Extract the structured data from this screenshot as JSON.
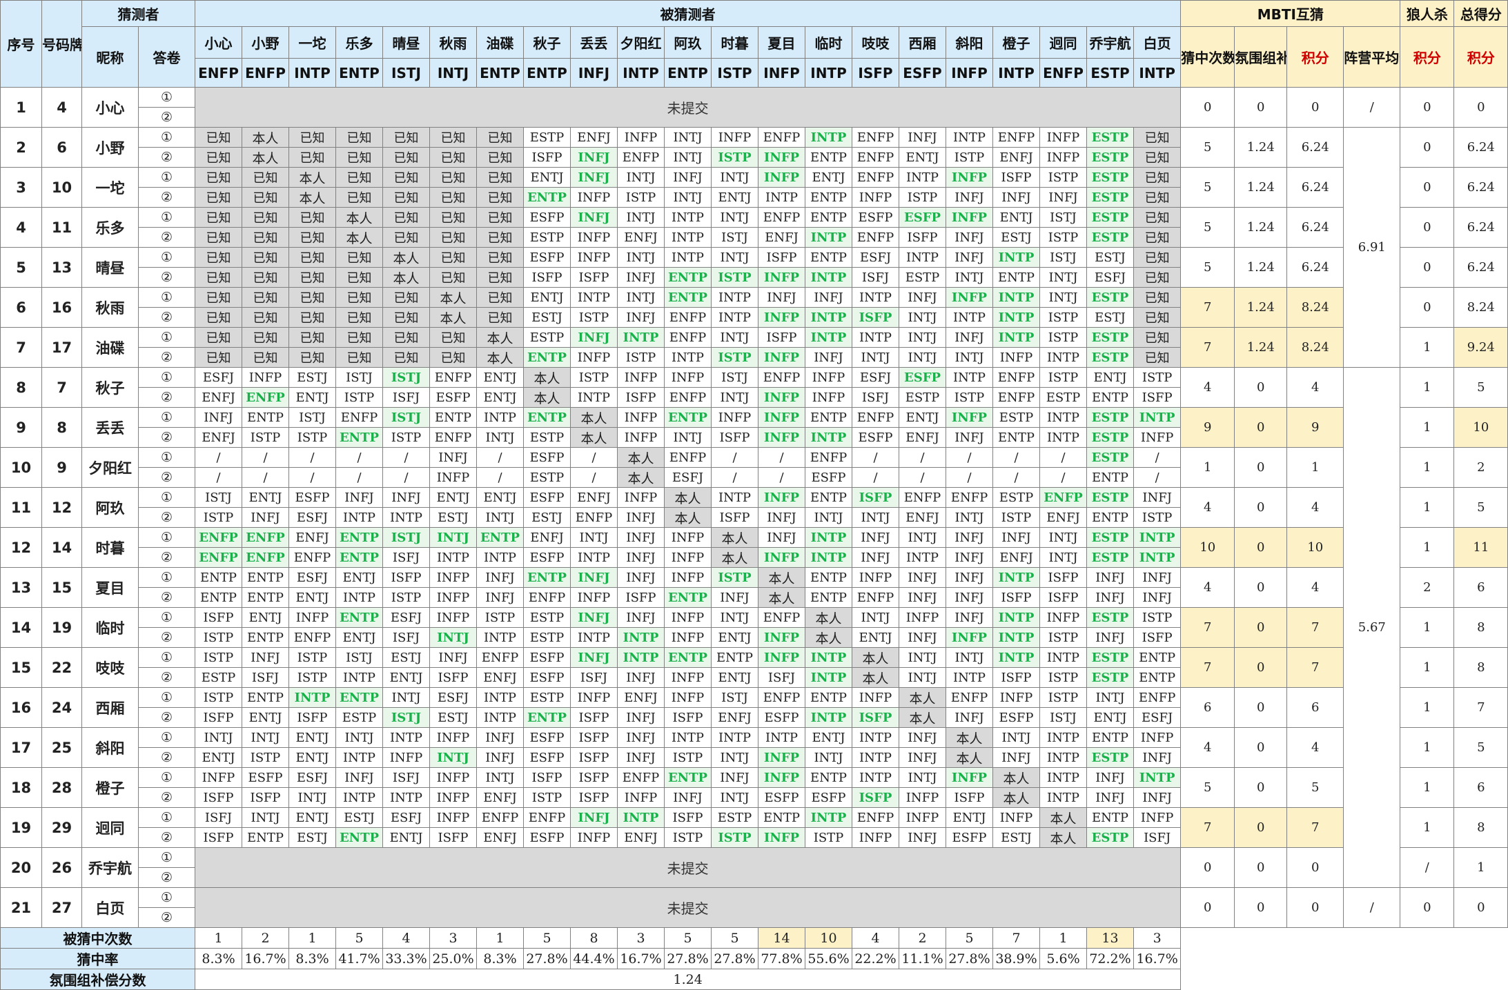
{
  "headers": {
    "seq": "序号",
    "card": "号码牌",
    "guesser": "猜测者",
    "nick": "昵称",
    "sheet": "答卷",
    "guessed_group": "被猜测者",
    "mbti_group": "MBTI互猜",
    "hits": "猜中次数",
    "comp": "氛围组补偿分",
    "points": "积分",
    "camp_avg": "阵营平均分",
    "wolf_group": "狼人杀",
    "wolf_points": "积分",
    "total_group": "总得分",
    "total_points": "积分"
  },
  "targets": [
    {
      "name": "小心",
      "mbti": "ENFP"
    },
    {
      "name": "小野",
      "mbti": "ENFP"
    },
    {
      "name": "一坨",
      "mbti": "INTP"
    },
    {
      "name": "乐多",
      "mbti": "ENTP"
    },
    {
      "name": "晴昼",
      "mbti": "ISTJ"
    },
    {
      "name": "秋雨",
      "mbti": "INTJ"
    },
    {
      "name": "油碟",
      "mbti": "ENTP"
    },
    {
      "name": "秋子",
      "mbti": "ENTP"
    },
    {
      "name": "丢丢",
      "mbti": "INFJ"
    },
    {
      "name": "夕阳红",
      "mbti": "INTP"
    },
    {
      "name": "阿玖",
      "mbti": "ENTP"
    },
    {
      "name": "时暮",
      "mbti": "ISTP"
    },
    {
      "name": "夏目",
      "mbti": "INFP"
    },
    {
      "name": "临时",
      "mbti": "INTP"
    },
    {
      "name": "吱吱",
      "mbti": "ISFP"
    },
    {
      "name": "西厢",
      "mbti": "ESFP"
    },
    {
      "name": "斜阳",
      "mbti": "INFP"
    },
    {
      "name": "橙子",
      "mbti": "INTP"
    },
    {
      "name": "迥同",
      "mbti": "ENFP"
    },
    {
      "name": "乔宇航",
      "mbti": "ESTP"
    },
    {
      "name": "白页",
      "mbti": "INTP"
    }
  ],
  "markers": [
    "①",
    "②"
  ],
  "not_submitted": "未提交",
  "rows": [
    {
      "seq": "1",
      "card": "4",
      "nick": "小心",
      "ns": true,
      "hits": "0",
      "comp": "0",
      "pts": "0",
      "wolf": "0",
      "total": "0",
      "avg": "/"
    },
    {
      "seq": "2",
      "card": "6",
      "nick": "小野",
      "hits": "5",
      "comp": "1.24",
      "pts": "6.24",
      "wolf": "0",
      "total": "6.24",
      "a1": [
        "已知",
        "本人",
        "已知",
        "已知",
        "已知",
        "已知",
        "已知",
        "ESTP",
        "ENFJ",
        "INFP",
        "INTJ",
        "INFP",
        "ENFP",
        "INTP",
        "ENFP",
        "INFJ",
        "INTP",
        "ENFP",
        "INFP",
        "ESTP",
        "已知"
      ],
      "a2": [
        "已知",
        "本人",
        "已知",
        "已知",
        "已知",
        "已知",
        "已知",
        "ISFP",
        "INFJ",
        "ENFP",
        "INTJ",
        "ISTP",
        "INFP",
        "ENTP",
        "ENFP",
        "ENTJ",
        "ISTP",
        "ENFJ",
        "INFP",
        "ESTP",
        "已知"
      ]
    },
    {
      "seq": "3",
      "card": "10",
      "nick": "一坨",
      "hits": "5",
      "comp": "1.24",
      "pts": "6.24",
      "wolf": "0",
      "total": "6.24",
      "a1": [
        "已知",
        "已知",
        "本人",
        "已知",
        "已知",
        "已知",
        "已知",
        "ENTJ",
        "INFJ",
        "INTJ",
        "INFJ",
        "INTJ",
        "INFP",
        "ENTJ",
        "ENFP",
        "INTP",
        "INFP",
        "ISFP",
        "ISTP",
        "ESTP",
        "已知"
      ],
      "a2": [
        "已知",
        "已知",
        "本人",
        "已知",
        "已知",
        "已知",
        "已知",
        "ENTP",
        "INFP",
        "ISTP",
        "INTJ",
        "ENTJ",
        "INTP",
        "ENTP",
        "INFP",
        "ISTP",
        "INFJ",
        "INFJ",
        "INFJ",
        "ESTP",
        "已知"
      ]
    },
    {
      "seq": "4",
      "card": "11",
      "nick": "乐多",
      "hits": "5",
      "comp": "1.24",
      "pts": "6.24",
      "wolf": "0",
      "total": "6.24",
      "a1": [
        "已知",
        "已知",
        "已知",
        "本人",
        "已知",
        "已知",
        "已知",
        "ESFP",
        "INFJ",
        "INTJ",
        "INTP",
        "INTJ",
        "ENFP",
        "ENTP",
        "ESFP",
        "ESFP",
        "INFP",
        "ENTJ",
        "ISTJ",
        "ESTP",
        "已知"
      ],
      "a2": [
        "已知",
        "已知",
        "已知",
        "本人",
        "已知",
        "已知",
        "已知",
        "ESTP",
        "INFP",
        "ENFJ",
        "INTP",
        "ISTJ",
        "ENFJ",
        "INTP",
        "ENFP",
        "ISFP",
        "INFJ",
        "ESTJ",
        "ISTP",
        "ESTP",
        "已知"
      ]
    },
    {
      "seq": "5",
      "card": "13",
      "nick": "晴昼",
      "hits": "5",
      "comp": "1.24",
      "pts": "6.24",
      "wolf": "0",
      "total": "6.24",
      "a1": [
        "已知",
        "已知",
        "已知",
        "已知",
        "本人",
        "已知",
        "已知",
        "ESFP",
        "INFP",
        "INTJ",
        "INTP",
        "INTJ",
        "ISFP",
        "ENTP",
        "ESFJ",
        "INTP",
        "INFJ",
        "INTP",
        "ISTJ",
        "ESTJ",
        "已知"
      ],
      "a2": [
        "已知",
        "已知",
        "已知",
        "已知",
        "本人",
        "已知",
        "已知",
        "ISFP",
        "ISFP",
        "INFJ",
        "ENTP",
        "ISTP",
        "INFP",
        "INTP",
        "ISFJ",
        "ESTP",
        "INTJ",
        "ENTP",
        "INTJ",
        "ESFJ",
        "已知"
      ]
    },
    {
      "seq": "6",
      "card": "16",
      "nick": "秋雨",
      "hits": "7",
      "comp": "1.24",
      "pts": "8.24",
      "wolf": "0",
      "total": "8.24",
      "a1": [
        "已知",
        "已知",
        "已知",
        "已知",
        "已知",
        "本人",
        "已知",
        "ENTJ",
        "INTP",
        "INTJ",
        "ENTP",
        "INTP",
        "INFJ",
        "INFJ",
        "INTP",
        "INFJ",
        "INFP",
        "INTP",
        "INTJ",
        "ESTP",
        "已知"
      ],
      "a2": [
        "已知",
        "已知",
        "已知",
        "已知",
        "已知",
        "本人",
        "已知",
        "ESTJ",
        "ISTP",
        "INFJ",
        "ENFP",
        "INTP",
        "INFP",
        "INTP",
        "ISFP",
        "INTJ",
        "INTP",
        "INTP",
        "ISTP",
        "ESTJ",
        "已知"
      ]
    },
    {
      "seq": "7",
      "card": "17",
      "nick": "油碟",
      "hits": "7",
      "comp": "1.24",
      "pts": "8.24",
      "wolf": "1",
      "total": "9.24",
      "a1": [
        "已知",
        "已知",
        "已知",
        "已知",
        "已知",
        "已知",
        "本人",
        "ESTP",
        "INFJ",
        "INTP",
        "ENFP",
        "INTJ",
        "ISFP",
        "INTP",
        "INTP",
        "INTJ",
        "INFJ",
        "INTP",
        "ISTP",
        "ESTP",
        "已知"
      ],
      "a2": [
        "已知",
        "已知",
        "已知",
        "已知",
        "已知",
        "已知",
        "本人",
        "ENTP",
        "INFP",
        "ISTP",
        "INTP",
        "ISTP",
        "INFP",
        "INFJ",
        "INTJ",
        "INTJ",
        "INTJ",
        "INFP",
        "INTP",
        "ESTP",
        "已知"
      ]
    },
    {
      "seq": "8",
      "card": "7",
      "nick": "秋子",
      "hits": "4",
      "comp": "0",
      "pts": "4",
      "wolf": "1",
      "total": "5",
      "a1": [
        "ESFJ",
        "INFP",
        "ESTJ",
        "ISTJ",
        "ISTJ",
        "ENFP",
        "ENTJ",
        "本人",
        "ISTP",
        "INFP",
        "INFP",
        "ISTJ",
        "ENFP",
        "INFP",
        "ESFJ",
        "ESFP",
        "INTP",
        "ENFP",
        "ISTP",
        "ENTJ",
        "ISTP"
      ],
      "a2": [
        "ENFJ",
        "ENFP",
        "ENTJ",
        "ISTP",
        "ISFJ",
        "ESFP",
        "ENTJ",
        "本人",
        "INTP",
        "ISFP",
        "ENFP",
        "INTJ",
        "INFP",
        "INFP",
        "ISFJ",
        "ESTP",
        "ISTP",
        "ENFP",
        "ESTP",
        "ENTP",
        "ISFP"
      ]
    },
    {
      "seq": "9",
      "card": "8",
      "nick": "丢丢",
      "hits": "9",
      "comp": "0",
      "pts": "9",
      "wolf": "1",
      "total": "10",
      "a1": [
        "INFJ",
        "ENTP",
        "ISTJ",
        "ENFP",
        "ISTJ",
        "ENTP",
        "INTP",
        "ENTP",
        "本人",
        "INFP",
        "ENTP",
        "INFP",
        "INFP",
        "ENTP",
        "ENFP",
        "ENTJ",
        "INFP",
        "ESTP",
        "INTP",
        "ESTP",
        "INTP"
      ],
      "a2": [
        "ENFJ",
        "ISTP",
        "ISTP",
        "ENTP",
        "ISTP",
        "ENFP",
        "INTJ",
        "ESTP",
        "本人",
        "INFP",
        "INTJ",
        "ISFP",
        "INFP",
        "INTP",
        "ESFP",
        "ENFJ",
        "INFJ",
        "ENTP",
        "INTP",
        "ESTP",
        "INFP"
      ]
    },
    {
      "seq": "10",
      "card": "9",
      "nick": "夕阳红",
      "hits": "1",
      "comp": "0",
      "pts": "1",
      "wolf": "1",
      "total": "2",
      "a1": [
        "/",
        "/",
        "/",
        "/",
        "/",
        "INFJ",
        "/",
        "ESFP",
        "/",
        "本人",
        "ENFP",
        "/",
        "/",
        "ENFP",
        "/",
        "/",
        "/",
        "/",
        "/",
        "ESTP",
        "/"
      ],
      "a2": [
        "/",
        "/",
        "/",
        "/",
        "/",
        "INFP",
        "/",
        "ESTP",
        "/",
        "本人",
        "ESFJ",
        "/",
        "/",
        "ESFP",
        "/",
        "/",
        "/",
        "/",
        "/",
        "ENTP",
        "/"
      ]
    },
    {
      "seq": "11",
      "card": "12",
      "nick": "阿玖",
      "hits": "4",
      "comp": "0",
      "pts": "4",
      "wolf": "1",
      "total": "5",
      "a1": [
        "ISTJ",
        "ENTJ",
        "ESFP",
        "INFJ",
        "INFJ",
        "ENTJ",
        "ENTJ",
        "ESFP",
        "ENFJ",
        "INFP",
        "本人",
        "INTP",
        "INFP",
        "ENTP",
        "ISFP",
        "ENFP",
        "ENFP",
        "ESTP",
        "ENFP",
        "ESTP",
        "INFJ"
      ],
      "a2": [
        "ISTP",
        "INFJ",
        "ESFJ",
        "INTP",
        "INTP",
        "ESTJ",
        "INTJ",
        "ESTJ",
        "ENFP",
        "INFJ",
        "本人",
        "ISFP",
        "INFJ",
        "INTJ",
        "INTJ",
        "ENFJ",
        "INTJ",
        "ISTP",
        "ENFJ",
        "ENTP",
        "ISTP"
      ]
    },
    {
      "seq": "12",
      "card": "14",
      "nick": "时暮",
      "hits": "10",
      "comp": "0",
      "pts": "10",
      "wolf": "1",
      "total": "11",
      "a1": [
        "ENFP",
        "ENFP",
        "ENFJ",
        "ENTP",
        "ISTJ",
        "INTJ",
        "ENTP",
        "ENFJ",
        "INTJ",
        "INFJ",
        "INFP",
        "本人",
        "INFJ",
        "INTP",
        "INFJ",
        "INTJ",
        "INFJ",
        "INFJ",
        "INTJ",
        "ESTP",
        "INTP"
      ],
      "a2": [
        "ENFP",
        "ENFP",
        "ENFP",
        "ENTP",
        "ISFJ",
        "INTP",
        "INTP",
        "ESFP",
        "INTP",
        "INFJ",
        "INFP",
        "本人",
        "INFP",
        "INTP",
        "INFJ",
        "INTP",
        "INFJ",
        "ENFJ",
        "INTJ",
        "ESTP",
        "INTP"
      ]
    },
    {
      "seq": "13",
      "card": "15",
      "nick": "夏目",
      "hits": "4",
      "comp": "0",
      "pts": "4",
      "wolf": "2",
      "total": "6",
      "a1": [
        "ENTP",
        "ENTP",
        "ESFJ",
        "ENTJ",
        "ISFP",
        "INFP",
        "INFJ",
        "ENTP",
        "INFJ",
        "INFJ",
        "INFP",
        "ISTP",
        "本人",
        "ENTP",
        "INFP",
        "INFJ",
        "INFJ",
        "INTP",
        "ISFP",
        "INFJ",
        "INFJ"
      ],
      "a2": [
        "ENTP",
        "ENTP",
        "ENTJ",
        "INTP",
        "ISTP",
        "INFP",
        "INFJ",
        "ENFP",
        "INFP",
        "ISFP",
        "ENTP",
        "INFJ",
        "本人",
        "ENTP",
        "ENFP",
        "INFJ",
        "INFJ",
        "ISFP",
        "ISFP",
        "INFJ",
        "INFJ"
      ]
    },
    {
      "seq": "14",
      "card": "19",
      "nick": "临时",
      "hits": "7",
      "comp": "0",
      "pts": "7",
      "wolf": "1",
      "total": "8",
      "a1": [
        "ISFP",
        "ENTJ",
        "INFP",
        "ENTP",
        "ESFJ",
        "INFP",
        "ISTP",
        "ESTP",
        "INFJ",
        "INFJ",
        "INFP",
        "INTJ",
        "ENFP",
        "本人",
        "INTJ",
        "INFP",
        "INFJ",
        "INTP",
        "INFP",
        "ESTP",
        "ISTP"
      ],
      "a2": [
        "ISTP",
        "ENTP",
        "ENFP",
        "ENTJ",
        "ISFJ",
        "INTJ",
        "INTP",
        "ESTP",
        "INTP",
        "INTP",
        "INFP",
        "ENTJ",
        "INFP",
        "本人",
        "ENTJ",
        "INFJ",
        "INFP",
        "INTP",
        "ISTP",
        "INFJ",
        "ISFP"
      ]
    },
    {
      "seq": "15",
      "card": "22",
      "nick": "吱吱",
      "hits": "7",
      "comp": "0",
      "pts": "7",
      "wolf": "1",
      "total": "8",
      "a1": [
        "ISTP",
        "INFJ",
        "ISTP",
        "ISTJ",
        "ESTJ",
        "INFJ",
        "ENFP",
        "ESFP",
        "INFJ",
        "INTP",
        "ENTP",
        "ENTP",
        "INFP",
        "INTP",
        "本人",
        "INTJ",
        "INTJ",
        "INTP",
        "INTP",
        "ESTP",
        "ENTP"
      ],
      "a2": [
        "ESTP",
        "ISFJ",
        "ISTP",
        "INTP",
        "ENTJ",
        "ISFP",
        "ENFJ",
        "ESFP",
        "ISFJ",
        "INFJ",
        "INFP",
        "ENTJ",
        "ISFJ",
        "INTP",
        "本人",
        "INTJ",
        "INTP",
        "ISFP",
        "ISTP",
        "ESTP",
        "ENTP"
      ]
    },
    {
      "seq": "16",
      "card": "24",
      "nick": "西厢",
      "hits": "6",
      "comp": "0",
      "pts": "6",
      "wolf": "1",
      "total": "7",
      "a1": [
        "ISTP",
        "ENTP",
        "INTP",
        "ENTP",
        "INTJ",
        "ESFJ",
        "INTP",
        "ESTP",
        "INFP",
        "ENFJ",
        "INFP",
        "ISTJ",
        "ENFP",
        "ENTP",
        "INFP",
        "本人",
        "ENFP",
        "INFP",
        "ISTP",
        "INTJ",
        "ENFP"
      ],
      "a2": [
        "ISFP",
        "ENTJ",
        "ISFP",
        "ESTP",
        "ISTJ",
        "ESTJ",
        "INTP",
        "ENTP",
        "ISFP",
        "INFJ",
        "ISFP",
        "ENFJ",
        "ESFP",
        "INTP",
        "ISFP",
        "本人",
        "INFJ",
        "ESFP",
        "ISTJ",
        "ENTJ",
        "ESFJ"
      ]
    },
    {
      "seq": "17",
      "card": "25",
      "nick": "斜阳",
      "hits": "4",
      "comp": "0",
      "pts": "4",
      "wolf": "1",
      "total": "5",
      "a1": [
        "INTJ",
        "INTJ",
        "ENTJ",
        "INTJ",
        "INTP",
        "INFP",
        "INFJ",
        "ESFP",
        "ISFP",
        "INFJ",
        "INTP",
        "INTP",
        "INTP",
        "ENTJ",
        "INTP",
        "INFJ",
        "本人",
        "INTJ",
        "INTP",
        "ENTP",
        "INFP"
      ],
      "a2": [
        "ENTJ",
        "ISTP",
        "ENTJ",
        "INTP",
        "INFP",
        "INTJ",
        "INFJ",
        "ESFP",
        "ISFP",
        "INFJ",
        "ISTP",
        "INTJ",
        "INFP",
        "INTJ",
        "INTP",
        "INFJ",
        "本人",
        "INFJ",
        "INTP",
        "ESTP",
        "INFJ"
      ]
    },
    {
      "seq": "18",
      "card": "28",
      "nick": "橙子",
      "hits": "5",
      "comp": "0",
      "pts": "5",
      "wolf": "1",
      "total": "6",
      "a1": [
        "INFP",
        "ESFP",
        "ESFJ",
        "INFJ",
        "ISFJ",
        "INFP",
        "INTJ",
        "ISFP",
        "ISFP",
        "ENFP",
        "ENTP",
        "INFJ",
        "INFP",
        "ENTP",
        "INTP",
        "INTJ",
        "INFP",
        "本人",
        "INTP",
        "INFJ",
        "INTP"
      ],
      "a2": [
        "ISFP",
        "ISFP",
        "INTJ",
        "INTP",
        "INTP",
        "INFP",
        "ENFJ",
        "ISTP",
        "ISFP",
        "INFP",
        "INFJ",
        "INTJ",
        "ESFP",
        "ESFP",
        "ISFP",
        "INFP",
        "ISFP",
        "本人",
        "INTP",
        "INFJ",
        "INFJ"
      ]
    },
    {
      "seq": "19",
      "card": "29",
      "nick": "迥同",
      "hits": "7",
      "comp": "0",
      "pts": "7",
      "wolf": "1",
      "total": "8",
      "a1": [
        "ISFJ",
        "INTJ",
        "ENTJ",
        "ESTJ",
        "ESFJ",
        "INFP",
        "ENFP",
        "ENFP",
        "INFJ",
        "INTP",
        "ISFP",
        "ESTP",
        "ENTP",
        "INTP",
        "ENFP",
        "INFP",
        "ENTJ",
        "INFP",
        "本人",
        "ENTP",
        "INFP"
      ],
      "a2": [
        "ISFP",
        "ENTP",
        "ESTJ",
        "ENTP",
        "ENTJ",
        "ISFP",
        "ENFJ",
        "ESFP",
        "INFP",
        "ENFJ",
        "ISTP",
        "ISTP",
        "INFP",
        "ISTP",
        "INFP",
        "INFJ",
        "ESFP",
        "ESTJ",
        "本人",
        "ESTP",
        "ISFJ"
      ]
    },
    {
      "seq": "20",
      "card": "26",
      "nick": "乔宇航",
      "ns": true,
      "hits": "0",
      "comp": "0",
      "pts": "0",
      "wolf": "1",
      "total": "1",
      "avg": "/"
    },
    {
      "seq": "21",
      "card": "27",
      "nick": "白页",
      "ns": true,
      "hits": "0",
      "comp": "0",
      "pts": "0",
      "wolf": "0",
      "total": "0",
      "avg": "/"
    }
  ],
  "camp_avg": [
    "6.91",
    "5.67"
  ],
  "footer": {
    "times_label": "被猜中次数",
    "times": [
      "1",
      "2",
      "1",
      "5",
      "4",
      "3",
      "1",
      "5",
      "8",
      "3",
      "5",
      "5",
      "14",
      "10",
      "4",
      "2",
      "5",
      "7",
      "1",
      "13",
      "3"
    ],
    "rate_label": "猜中率",
    "rates": [
      "8.3%",
      "16.7%",
      "8.3%",
      "41.7%",
      "33.3%",
      "25.0%",
      "8.3%",
      "27.8%",
      "44.4%",
      "16.7%",
      "27.8%",
      "27.8%",
      "77.8%",
      "55.6%",
      "22.2%",
      "11.1%",
      "27.8%",
      "38.9%",
      "5.6%",
      "72.2%",
      "16.7%"
    ],
    "comp_label": "氛围组补偿分数",
    "comp_value": "1.24"
  },
  "colors": {
    "header_blue": "#d6ecfb",
    "header_yellow": "#fdf1c7",
    "gray": "#d9d9d9",
    "correct_bg": "#e8f7ea",
    "correct_text": "#19b14a",
    "red": "#d00000"
  }
}
